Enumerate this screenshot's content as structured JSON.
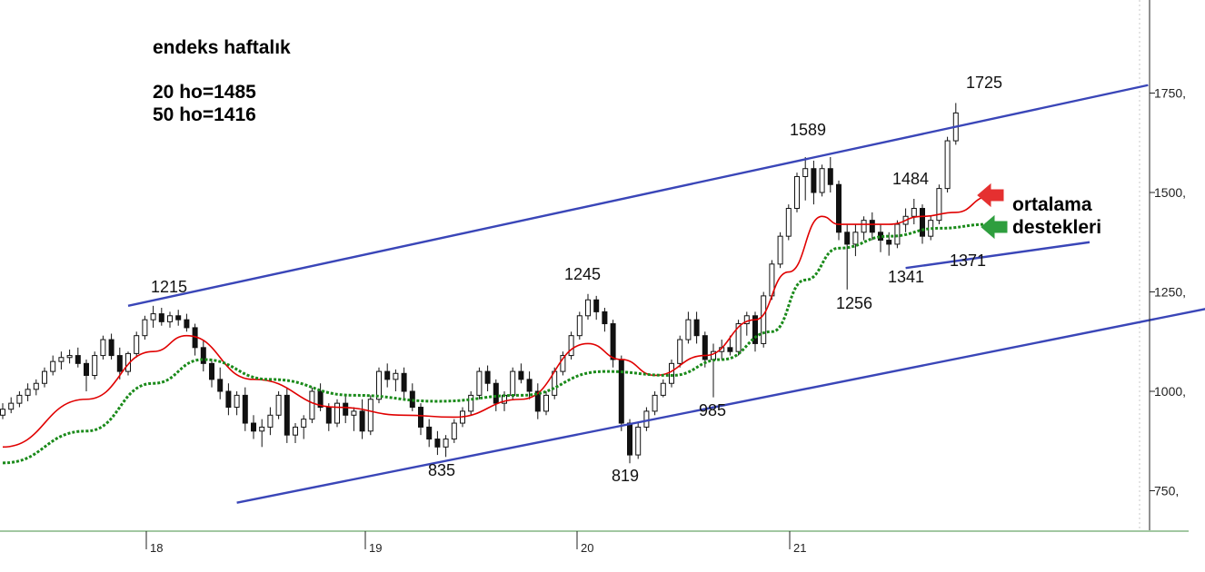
{
  "header": {
    "title": "endeks haftalık",
    "ma20": "20 ho=1485",
    "ma50": "50 ho=1416"
  },
  "note": {
    "line1": "ortalama",
    "line2": "destekleri"
  },
  "chart_data": {
    "type": "candlestick",
    "ylim": [
      655,
      1870
    ],
    "y_ticks": [
      {
        "value": 1750,
        "label": "1750,"
      },
      {
        "value": 1500,
        "label": "1500,"
      },
      {
        "value": 1250,
        "label": "1250,"
      },
      {
        "value": 1000,
        "label": "1000,"
      },
      {
        "value": 750,
        "label": "750,"
      }
    ],
    "x_ticks": [
      "18",
      "19",
      "20",
      "21"
    ],
    "annotations": [
      "1215",
      "1245",
      "835",
      "819",
      "985",
      "1589",
      "1484",
      "1256",
      "1341",
      "1371",
      "1725"
    ],
    "series": [
      {
        "kind": "ohlc",
        "values": [
          [
            940,
            970,
            930,
            955
          ],
          [
            955,
            985,
            945,
            970
          ],
          [
            970,
            1000,
            960,
            990
          ],
          [
            990,
            1020,
            975,
            1005
          ],
          [
            1005,
            1030,
            990,
            1020
          ],
          [
            1020,
            1060,
            1010,
            1050
          ],
          [
            1050,
            1090,
            1040,
            1075
          ],
          [
            1075,
            1100,
            1055,
            1085
          ],
          [
            1085,
            1105,
            1070,
            1090
          ],
          [
            1090,
            1110,
            1060,
            1070
          ],
          [
            1070,
            1080,
            1000,
            1040
          ],
          [
            1040,
            1100,
            1030,
            1090
          ],
          [
            1090,
            1140,
            1080,
            1130
          ],
          [
            1130,
            1145,
            1080,
            1090
          ],
          [
            1090,
            1110,
            1030,
            1050
          ],
          [
            1050,
            1100,
            1040,
            1095
          ],
          [
            1095,
            1150,
            1085,
            1140
          ],
          [
            1140,
            1190,
            1130,
            1180
          ],
          [
            1180,
            1215,
            1160,
            1195
          ],
          [
            1195,
            1210,
            1165,
            1175
          ],
          [
            1175,
            1200,
            1160,
            1190
          ],
          [
            1190,
            1205,
            1165,
            1180
          ],
          [
            1180,
            1195,
            1150,
            1160
          ],
          [
            1160,
            1170,
            1090,
            1110
          ],
          [
            1110,
            1130,
            1050,
            1070
          ],
          [
            1070,
            1080,
            1010,
            1030
          ],
          [
            1030,
            1060,
            980,
            1000
          ],
          [
            1000,
            1020,
            940,
            960
          ],
          [
            960,
            1000,
            940,
            990
          ],
          [
            990,
            1010,
            900,
            920
          ],
          [
            920,
            940,
            880,
            900
          ],
          [
            900,
            930,
            860,
            910
          ],
          [
            910,
            960,
            890,
            940
          ],
          [
            940,
            1000,
            930,
            990
          ],
          [
            990,
            1010,
            870,
            890
          ],
          [
            890,
            920,
            870,
            910
          ],
          [
            910,
            940,
            880,
            930
          ],
          [
            930,
            1010,
            920,
            1000
          ],
          [
            1000,
            1020,
            950,
            960
          ],
          [
            960,
            970,
            900,
            920
          ],
          [
            920,
            980,
            910,
            970
          ],
          [
            970,
            990,
            920,
            940
          ],
          [
            940,
            960,
            900,
            950
          ],
          [
            950,
            980,
            880,
            900
          ],
          [
            900,
            990,
            890,
            980
          ],
          [
            980,
            1060,
            970,
            1050
          ],
          [
            1050,
            1070,
            1010,
            1030
          ],
          [
            1030,
            1055,
            1000,
            1045
          ],
          [
            1045,
            1060,
            980,
            1000
          ],
          [
            1000,
            1020,
            950,
            960
          ],
          [
            960,
            970,
            890,
            910
          ],
          [
            910,
            930,
            860,
            880
          ],
          [
            880,
            900,
            840,
            860
          ],
          [
            860,
            890,
            835,
            880
          ],
          [
            880,
            930,
            870,
            920
          ],
          [
            920,
            960,
            910,
            950
          ],
          [
            950,
            1000,
            940,
            990
          ],
          [
            990,
            1060,
            980,
            1050
          ],
          [
            1050,
            1065,
            1000,
            1020
          ],
          [
            1020,
            1030,
            950,
            970
          ],
          [
            970,
            1000,
            950,
            990
          ],
          [
            990,
            1060,
            980,
            1050
          ],
          [
            1050,
            1070,
            1020,
            1030
          ],
          [
            1030,
            1050,
            980,
            1000
          ],
          [
            1000,
            1020,
            930,
            950
          ],
          [
            950,
            1000,
            940,
            990
          ],
          [
            990,
            1060,
            980,
            1050
          ],
          [
            1050,
            1100,
            1040,
            1090
          ],
          [
            1090,
            1150,
            1080,
            1140
          ],
          [
            1140,
            1200,
            1130,
            1190
          ],
          [
            1190,
            1245,
            1180,
            1230
          ],
          [
            1230,
            1240,
            1180,
            1200
          ],
          [
            1200,
            1210,
            1150,
            1170
          ],
          [
            1170,
            1180,
            1060,
            1080
          ],
          [
            1080,
            1090,
            900,
            920
          ],
          [
            920,
            930,
            819,
            840
          ],
          [
            840,
            920,
            830,
            910
          ],
          [
            910,
            960,
            900,
            950
          ],
          [
            950,
            1000,
            940,
            990
          ],
          [
            990,
            1030,
            985,
            1020
          ],
          [
            1020,
            1080,
            1010,
            1070
          ],
          [
            1070,
            1140,
            1060,
            1130
          ],
          [
            1130,
            1200,
            1120,
            1180
          ],
          [
            1180,
            1200,
            1120,
            1140
          ],
          [
            1140,
            1150,
            1060,
            1080
          ],
          [
            1080,
            1120,
            985,
            1100
          ],
          [
            1100,
            1130,
            1080,
            1110
          ],
          [
            1110,
            1140,
            1090,
            1100
          ],
          [
            1100,
            1180,
            1090,
            1170
          ],
          [
            1170,
            1200,
            1140,
            1190
          ],
          [
            1190,
            1200,
            1100,
            1120
          ],
          [
            1120,
            1250,
            1110,
            1240
          ],
          [
            1240,
            1330,
            1230,
            1320
          ],
          [
            1320,
            1400,
            1310,
            1390
          ],
          [
            1390,
            1470,
            1380,
            1460
          ],
          [
            1460,
            1550,
            1450,
            1540
          ],
          [
            1540,
            1589,
            1480,
            1560
          ],
          [
            1560,
            1580,
            1470,
            1500
          ],
          [
            1500,
            1570,
            1490,
            1560
          ],
          [
            1560,
            1589,
            1500,
            1520
          ],
          [
            1520,
            1530,
            1380,
            1400
          ],
          [
            1400,
            1420,
            1256,
            1370
          ],
          [
            1370,
            1420,
            1340,
            1400
          ],
          [
            1400,
            1440,
            1380,
            1430
          ],
          [
            1430,
            1450,
            1380,
            1400
          ],
          [
            1400,
            1420,
            1350,
            1380
          ],
          [
            1380,
            1400,
            1341,
            1370
          ],
          [
            1370,
            1430,
            1360,
            1420
          ],
          [
            1420,
            1460,
            1400,
            1440
          ],
          [
            1440,
            1484,
            1420,
            1460
          ],
          [
            1460,
            1470,
            1371,
            1390
          ],
          [
            1390,
            1440,
            1380,
            1430
          ],
          [
            1430,
            1520,
            1420,
            1510
          ],
          [
            1510,
            1640,
            1500,
            1630
          ],
          [
            1630,
            1725,
            1620,
            1700
          ]
        ]
      },
      {
        "kind": "ma",
        "name": "20 ho",
        "color": "#e00000",
        "values": [
          [
            0,
            860
          ],
          [
            10,
            980
          ],
          [
            18,
            1100
          ],
          [
            22,
            1140
          ],
          [
            30,
            1030
          ],
          [
            40,
            960
          ],
          [
            48,
            940
          ],
          [
            54,
            935
          ],
          [
            62,
            980
          ],
          [
            70,
            1120
          ],
          [
            74,
            1080
          ],
          [
            78,
            1040
          ],
          [
            84,
            1090
          ],
          [
            90,
            1180
          ],
          [
            94,
            1300
          ],
          [
            98,
            1440
          ],
          [
            100,
            1420
          ],
          [
            106,
            1420
          ],
          [
            110,
            1440
          ],
          [
            114,
            1450
          ],
          [
            118,
            1490
          ]
        ]
      },
      {
        "kind": "ma",
        "name": "50 ho",
        "color": "#1a8a1a",
        "values": [
          [
            0,
            820
          ],
          [
            10,
            900
          ],
          [
            18,
            1020
          ],
          [
            24,
            1080
          ],
          [
            32,
            1030
          ],
          [
            42,
            990
          ],
          [
            52,
            975
          ],
          [
            62,
            990
          ],
          [
            72,
            1050
          ],
          [
            80,
            1040
          ],
          [
            86,
            1080
          ],
          [
            92,
            1150
          ],
          [
            96,
            1280
          ],
          [
            100,
            1360
          ],
          [
            106,
            1390
          ],
          [
            112,
            1410
          ],
          [
            118,
            1420
          ]
        ]
      }
    ],
    "trendlines": [
      {
        "kind": "upper-channel",
        "from": [
          15,
          1215
        ],
        "to": [
          137,
          1770
        ]
      },
      {
        "kind": "lower-channel",
        "from": [
          28,
          720
        ],
        "to": [
          160,
          1275
        ]
      },
      {
        "kind": "support",
        "from": [
          108,
          1310
        ],
        "to": [
          130,
          1375
        ]
      }
    ],
    "markers": [
      {
        "kind": "arrow",
        "color": "#e53030",
        "value": 1480
      },
      {
        "kind": "arrow",
        "color": "#2e9e3e",
        "value": 1400
      }
    ]
  }
}
